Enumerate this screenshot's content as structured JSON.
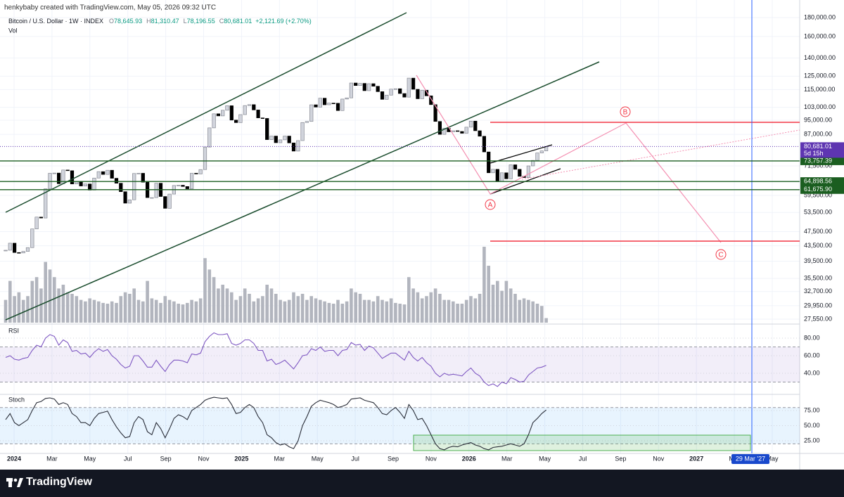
{
  "header": {
    "credit": "henkybaby created with TradingView.com, May 05, 2026 09:32 UTC"
  },
  "chart_data": [
    {
      "type": "candlestick",
      "symbol": "Bitcoin / U.S. Dollar · 1W · INDEX",
      "legend": [
        {
          "key": "O",
          "value": "78,645.93"
        },
        {
          "key": "H",
          "value": "81,310.47"
        },
        {
          "key": "L",
          "value": "78,196.55"
        },
        {
          "key": "C",
          "value": "80,681.01"
        }
      ],
      "change": "+2,121.69 (+2.70%)",
      "volume_label": "Vol",
      "log_scale": true,
      "ylim": [
        26950,
        185600
      ],
      "yticks": [
        {
          "value": 180000,
          "label": "180,000.00"
        },
        {
          "value": 160000,
          "label": "160,000.00"
        },
        {
          "value": 140000,
          "label": "140,000.00"
        },
        {
          "value": 125000,
          "label": "125,000.00"
        },
        {
          "value": 115000,
          "label": "115,000.00"
        },
        {
          "value": 103000,
          "label": "103,000.00"
        },
        {
          "value": 95000,
          "label": "95,000.00"
        },
        {
          "value": 87000,
          "label": "87,000.00"
        },
        {
          "value": 71500,
          "label": "71,500.00"
        },
        {
          "value": 59500,
          "label": "59,500.00"
        },
        {
          "value": 53500,
          "label": "53,500.00"
        },
        {
          "value": 47500,
          "label": "47,500.00"
        },
        {
          "value": 43500,
          "label": "43,500.00"
        },
        {
          "value": 39500,
          "label": "39,500.00"
        },
        {
          "value": 35500,
          "label": "35,500.00"
        },
        {
          "value": 32700,
          "label": "32,700.00"
        },
        {
          "value": 29950,
          "label": "29,950.00"
        },
        {
          "value": 27550,
          "label": "27,550.00"
        }
      ],
      "x_labels": [
        "2024",
        "Mar",
        "May",
        "Jul",
        "Sep",
        "Nov",
        "2025",
        "Mar",
        "May",
        "Jul",
        "Sep",
        "Nov",
        "2026",
        "Mar",
        "May",
        "Jul",
        "Sep",
        "Nov",
        "2027",
        "Mar",
        "May"
      ],
      "close": [
        42300,
        44200,
        41700,
        41600,
        42000,
        43000,
        48300,
        52000,
        51700,
        62000,
        68300,
        68400,
        64000,
        69700,
        69400,
        63900,
        64900,
        63100,
        63900,
        61500,
        66300,
        69000,
        67800,
        69600,
        66200,
        64200,
        60900,
        56700,
        57900,
        68200,
        68300,
        64600,
        58700,
        58700,
        64200,
        59100,
        54900,
        60000,
        63300,
        63400,
        62900,
        62000,
        68300,
        68000,
        69900,
        80400,
        90600,
        98900,
        97600,
        101100,
        104000,
        95100,
        93600,
        98400,
        104100,
        104700,
        101300,
        96400,
        96100,
        84200,
        86100,
        82600,
        84100,
        86100,
        82500,
        78400,
        83700,
        93700,
        94300,
        104600,
        103100,
        109000,
        104600,
        105700,
        105600,
        100900,
        108400,
        109200,
        119800,
        117900,
        119500,
        114200,
        119300,
        117400,
        113500,
        108200,
        111100,
        115300,
        115600,
        112200,
        109700,
        123500,
        115200,
        108600,
        114500,
        110600,
        104700,
        94300,
        87000,
        90400,
        88400,
        89000,
        88600,
        87600,
        91000,
        94500,
        89000,
        86000,
        78000,
        68500,
        70000,
        65000,
        68500,
        66000,
        72000,
        70000,
        67000,
        66500,
        71500,
        74000,
        77500,
        78500,
        80681.01
      ],
      "volume": [
        30,
        55,
        35,
        40,
        30,
        35,
        55,
        60,
        45,
        80,
        70,
        60,
        45,
        50,
        40,
        38,
        35,
        30,
        28,
        32,
        30,
        28,
        26,
        25,
        28,
        26,
        35,
        40,
        38,
        45,
        30,
        28,
        55,
        32,
        30,
        26,
        35,
        30,
        28,
        25,
        24,
        26,
        30,
        28,
        32,
        85,
        70,
        60,
        45,
        50,
        45,
        40,
        30,
        35,
        45,
        38,
        28,
        32,
        35,
        50,
        45,
        38,
        30,
        28,
        30,
        40,
        35,
        38,
        30,
        35,
        32,
        30,
        28,
        26,
        25,
        30,
        25,
        28,
        45,
        40,
        38,
        30,
        30,
        28,
        35,
        30,
        28,
        32,
        26,
        25,
        24,
        60,
        45,
        40,
        32,
        35,
        40,
        45,
        38,
        30,
        30,
        28,
        25,
        25,
        30,
        35,
        32,
        38,
        100,
        75,
        50,
        55,
        42,
        55,
        45,
        38,
        30,
        32,
        30,
        28,
        25,
        22,
        6
      ],
      "levels": [
        {
          "value": 73757.39,
          "label": "73,757.39"
        },
        {
          "value": 64898.56,
          "label": "64,898.56"
        },
        {
          "value": 61675.9,
          "label": "61,675.90"
        }
      ],
      "level_color": "#1b5e20",
      "last_price": {
        "value": 80681.01,
        "label": "80,681.01",
        "countdown": "5d 15h",
        "color": "#5e35b1"
      },
      "up_color": "#d1d4dc",
      "down_color": "#000000",
      "volume_color": "#b2b5be",
      "wave_labels": [
        "A",
        "B",
        "C"
      ],
      "date_tag": "29 Mar '27"
    },
    {
      "type": "line",
      "title": "RSI",
      "color": "#7e57c2",
      "values": [
        58,
        60,
        56,
        55,
        57,
        58,
        66,
        72,
        70,
        80,
        84,
        82,
        72,
        78,
        75,
        65,
        66,
        62,
        63,
        58,
        64,
        68,
        65,
        67,
        60,
        56,
        50,
        46,
        48,
        60,
        60,
        54,
        47,
        47,
        55,
        48,
        42,
        50,
        55,
        55,
        54,
        52,
        62,
        61,
        63,
        76,
        82,
        86,
        84,
        84,
        85,
        74,
        72,
        74,
        78,
        78,
        74,
        66,
        66,
        54,
        56,
        50,
        52,
        55,
        50,
        45,
        52,
        60,
        61,
        68,
        66,
        70,
        65,
        66,
        66,
        60,
        66,
        67,
        75,
        72,
        73,
        66,
        71,
        69,
        63,
        57,
        60,
        63,
        63,
        59,
        55,
        65,
        58,
        54,
        58,
        52,
        48,
        40,
        36,
        40,
        38,
        39,
        38,
        37,
        42,
        46,
        40,
        37,
        30,
        26,
        28,
        25,
        30,
        28,
        35,
        33,
        30,
        31,
        38,
        42,
        46,
        47,
        49
      ],
      "ylim": [
        16.8,
        95.2
      ],
      "yticks": [
        {
          "value": 80,
          "label": "80.00"
        },
        {
          "value": 60,
          "label": "60.00"
        },
        {
          "value": 40,
          "label": "40.00"
        }
      ],
      "band": [
        30,
        70
      ]
    },
    {
      "type": "line",
      "title": "Stoch",
      "color": "#2a2e39",
      "values": [
        60,
        70,
        55,
        50,
        55,
        60,
        75,
        88,
        90,
        95,
        96,
        94,
        85,
        88,
        85,
        70,
        65,
        55,
        55,
        50,
        62,
        70,
        72,
        74,
        60,
        48,
        38,
        30,
        32,
        55,
        65,
        60,
        40,
        35,
        55,
        45,
        30,
        45,
        62,
        68,
        65,
        60,
        75,
        80,
        85,
        92,
        95,
        97,
        96,
        95,
        96,
        85,
        70,
        72,
        80,
        85,
        80,
        65,
        55,
        35,
        30,
        22,
        18,
        20,
        15,
        12,
        25,
        50,
        65,
        82,
        88,
        92,
        90,
        88,
        85,
        80,
        82,
        85,
        94,
        95,
        96,
        92,
        90,
        88,
        80,
        70,
        68,
        75,
        80,
        72,
        62,
        85,
        75,
        60,
        62,
        50,
        35,
        20,
        12,
        10,
        14,
        16,
        15,
        18,
        20,
        22,
        18,
        16,
        12,
        10,
        14,
        15,
        16,
        18,
        20,
        18,
        16,
        20,
        35,
        55,
        62,
        70,
        76
      ],
      "ylim": [
        4.1,
        100.6
      ],
      "yticks": [
        {
          "value": 75,
          "label": "75.00"
        },
        {
          "value": 50,
          "label": "50.00"
        },
        {
          "value": 25,
          "label": "25.00"
        }
      ],
      "band": [
        20,
        80
      ]
    }
  ],
  "footer": {
    "brand": "TradingView"
  }
}
